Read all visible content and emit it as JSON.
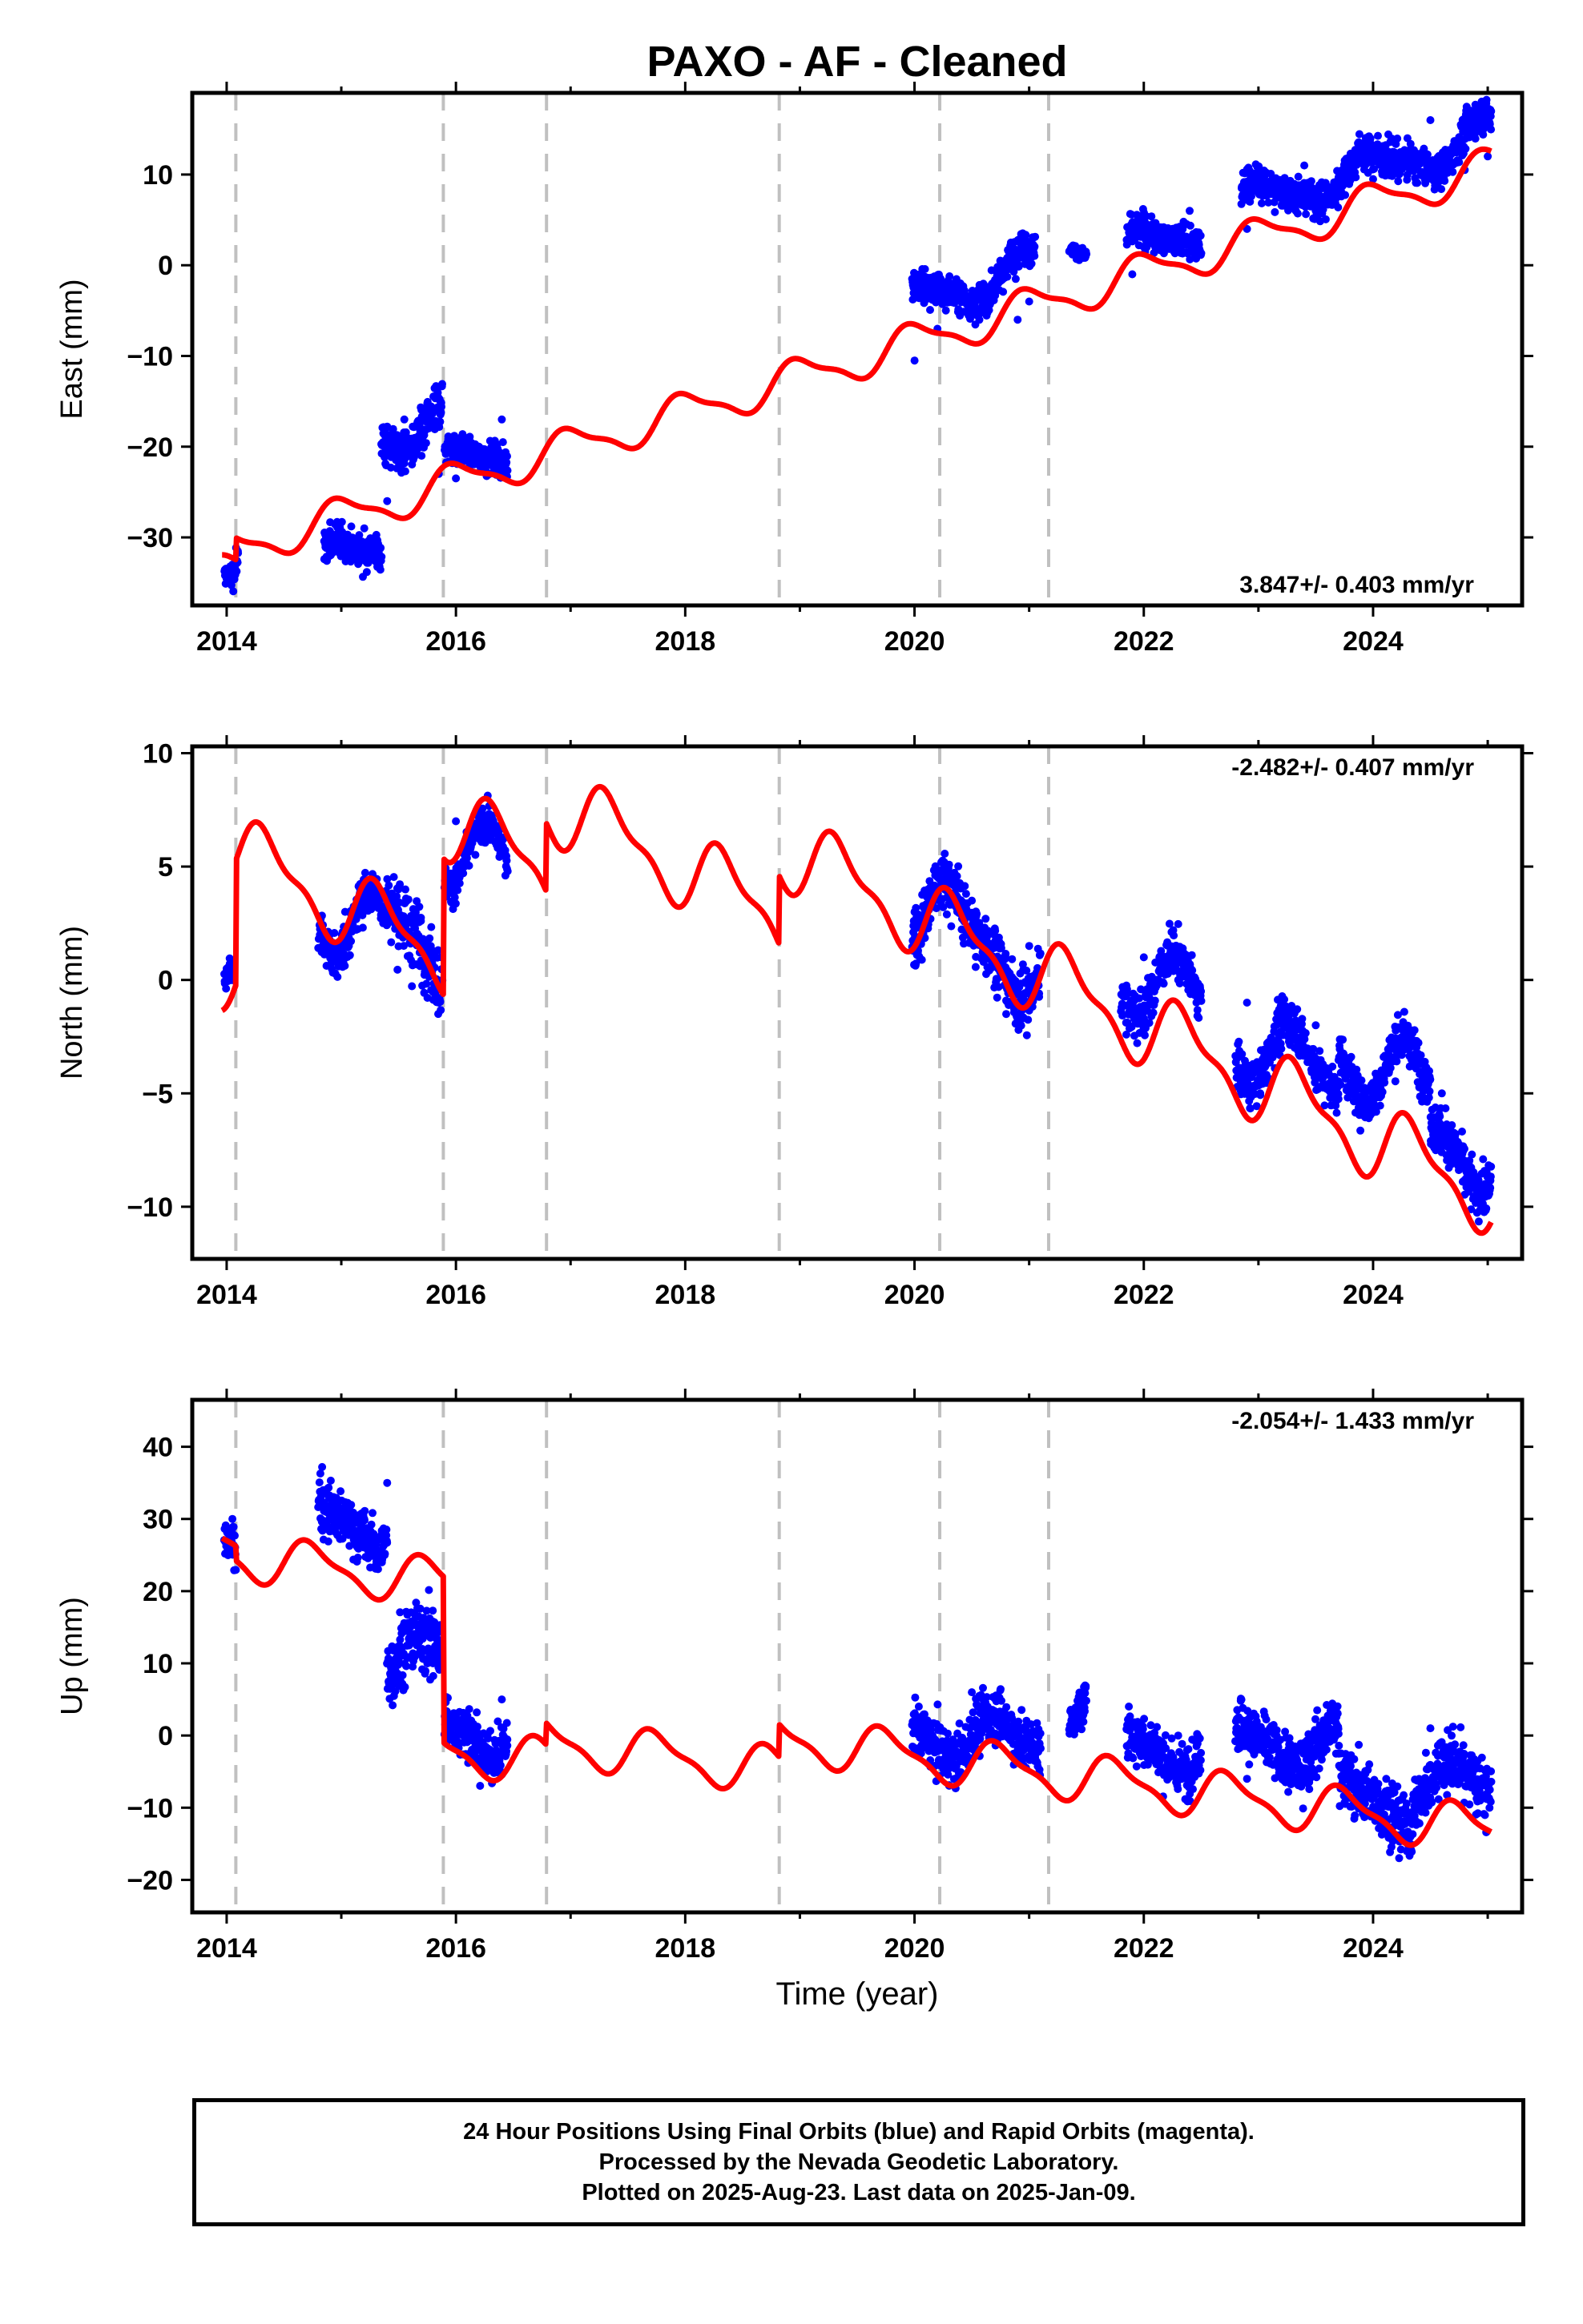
{
  "title": "PAXO  - AF - Cleaned",
  "xlabel": "Time (year)",
  "footer": {
    "line1": "24 Hour Positions Using Final Orbits (blue) and Rapid Orbits (magenta).",
    "line2": "Processed by the Nevada Geodetic Laboratory.",
    "line3": "Plotted on 2025-Aug-23. Last data on 2025-Jan-09."
  },
  "colors": {
    "data": "#0000ff",
    "model": "#ff0000",
    "breaks": "#c0c0c0",
    "axes": "#000000"
  },
  "chart_data": [
    {
      "type": "scatter",
      "ylabel": "East (mm)",
      "rate_label": "3.847+/- 0.403 mm/yr",
      "xlim": [
        2013.7,
        2025.3
      ],
      "ylim": [
        -37.5,
        19
      ],
      "xticks": [
        "2014",
        "2016",
        "2018",
        "2020",
        "2022",
        "2024"
      ],
      "yticks": [
        -30,
        -20,
        -10,
        0,
        10
      ],
      "ytick_labels": [
        "−30",
        "−20",
        "−10",
        "0",
        "10"
      ],
      "breaks": [
        2014.08,
        2015.89,
        2016.79,
        2018.82,
        2020.22,
        2021.17
      ],
      "model": {
        "rate": 3.847,
        "ref_year": 2014.0,
        "ref_value": -34.0,
        "annual_amp": 2.0,
        "semiannual_amp": 0.6,
        "phase": 0.25,
        "offsets": [
          [
            2014.08,
            2.4
          ],
          [
            2015.89,
            0
          ],
          [
            2016.79,
            0
          ],
          [
            2018.82,
            0
          ],
          [
            2020.22,
            0
          ],
          [
            2021.17,
            0
          ]
        ]
      },
      "points": [
        {
          "x": 2014.0,
          "y": -34.5
        },
        {
          "x": 2014.05,
          "y": -33.0
        },
        {
          "x": 2014.9,
          "y": -31.5
        },
        {
          "x": 2015.0,
          "y": -32.0
        },
        {
          "x": 2015.2,
          "y": -29.0
        },
        {
          "x": 2015.4,
          "y": -26.0
        },
        {
          "x": 2015.55,
          "y": -17.0
        },
        {
          "x": 2015.7,
          "y": -21.0
        },
        {
          "x": 2015.85,
          "y": -23.0
        },
        {
          "x": 2016.0,
          "y": -23.5
        },
        {
          "x": 2016.2,
          "y": -20.0
        },
        {
          "x": 2016.4,
          "y": -17.0
        },
        {
          "x": 2020.0,
          "y": -10.5
        },
        {
          "x": 2020.2,
          "y": -7.0
        },
        {
          "x": 2020.4,
          "y": -2.0
        },
        {
          "x": 2020.6,
          "y": -3.0
        },
        {
          "x": 2020.9,
          "y": -6.0
        },
        {
          "x": 2021.0,
          "y": -4.0
        },
        {
          "x": 2021.9,
          "y": -1.0
        },
        {
          "x": 2022.1,
          "y": 2.0
        },
        {
          "x": 2022.4,
          "y": 6.0
        },
        {
          "x": 2022.9,
          "y": 4.0
        },
        {
          "x": 2023.2,
          "y": 8.0
        },
        {
          "x": 2023.4,
          "y": 11.0
        },
        {
          "x": 2023.7,
          "y": 9.0
        },
        {
          "x": 2024.0,
          "y": 9.5
        },
        {
          "x": 2024.3,
          "y": 14.0
        },
        {
          "x": 2024.5,
          "y": 16.0
        },
        {
          "x": 2024.8,
          "y": 10.5
        },
        {
          "x": 2025.0,
          "y": 12.0
        }
      ],
      "segments": [
        [
          2013.98,
          2014.1,
          -34.5,
          2.5
        ],
        [
          2014.85,
          2015.35,
          -31.0,
          3.0
        ],
        [
          2015.35,
          2015.88,
          -20.0,
          4.0
        ],
        [
          2015.9,
          2016.45,
          -21.0,
          2.5
        ],
        [
          2019.98,
          2021.05,
          -4.0,
          3.0
        ],
        [
          2021.35,
          2021.5,
          1.5,
          1.0
        ],
        [
          2021.85,
          2022.5,
          3.0,
          2.8
        ],
        [
          2022.85,
          2023.8,
          8.0,
          3.0
        ],
        [
          2023.8,
          2025.03,
          11.0,
          3.0
        ]
      ]
    },
    {
      "type": "scatter",
      "ylabel": "North (mm)",
      "rate_label": "-2.482+/- 0.407 mm/yr",
      "xlim": [
        2013.7,
        2025.3
      ],
      "ylim": [
        -12.3,
        10.3
      ],
      "xticks": [
        "2014",
        "2016",
        "2018",
        "2020",
        "2022",
        "2024"
      ],
      "yticks": [
        -10,
        -5,
        0,
        5,
        10
      ],
      "ytick_labels": [
        "−10",
        "−5",
        "0",
        "5",
        "10"
      ],
      "breaks": [
        2014.08,
        2015.89,
        2016.79,
        2018.82,
        2020.22,
        2021.17
      ],
      "model": {
        "rate": -2.482,
        "ref_year": 2014.0,
        "ref_value": 0.3,
        "annual_amp": 1.5,
        "semiannual_amp": 0.6,
        "phase": 0.9,
        "offsets": [
          [
            2014.08,
            5.5
          ],
          [
            2015.89,
            6.0
          ],
          [
            2016.79,
            3.0
          ],
          [
            2018.82,
            3.0
          ],
          [
            2020.22,
            0
          ],
          [
            2021.17,
            0
          ]
        ]
      },
      "points": [
        {
          "x": 2014.0,
          "y": 0.5
        },
        {
          "x": 2014.9,
          "y": 2.0
        },
        {
          "x": 2015.1,
          "y": 3.0
        },
        {
          "x": 2015.5,
          "y": 4.0
        },
        {
          "x": 2015.85,
          "y": -1.0
        },
        {
          "x": 2016.0,
          "y": 7.0
        },
        {
          "x": 2016.3,
          "y": 6.5
        },
        {
          "x": 2020.0,
          "y": 3.0
        },
        {
          "x": 2020.5,
          "y": 3.5
        },
        {
          "x": 2020.8,
          "y": -1.5
        },
        {
          "x": 2021.0,
          "y": 1.5
        },
        {
          "x": 2022.0,
          "y": 1.0
        },
        {
          "x": 2022.3,
          "y": 0.0
        },
        {
          "x": 2022.9,
          "y": -1.0
        },
        {
          "x": 2023.2,
          "y": -1.5
        },
        {
          "x": 2023.5,
          "y": -2.0
        },
        {
          "x": 2023.8,
          "y": -5.0
        },
        {
          "x": 2024.2,
          "y": -3.5
        },
        {
          "x": 2024.6,
          "y": -5.0
        },
        {
          "x": 2024.9,
          "y": -9.0
        }
      ],
      "segments": [
        [
          2013.98,
          2014.06,
          0.3,
          1.2
        ],
        [
          2014.8,
          2015.4,
          2.5,
          1.5
        ],
        [
          2015.4,
          2015.88,
          2.0,
          2.5
        ],
        [
          2015.9,
          2016.45,
          6.5,
          1.2
        ],
        [
          2019.98,
          2021.1,
          2.0,
          2.0
        ],
        [
          2021.8,
          2022.5,
          0.5,
          1.6
        ],
        [
          2022.8,
          2023.7,
          -1.8,
          1.5
        ],
        [
          2023.7,
          2024.5,
          -4.0,
          1.6
        ],
        [
          2024.5,
          2025.03,
          -8.0,
          1.6
        ]
      ]
    },
    {
      "type": "scatter",
      "ylabel": "Up (mm)",
      "rate_label": "-2.054+/- 1.433 mm/yr",
      "xlim": [
        2013.7,
        2025.3
      ],
      "ylim": [
        -24.5,
        46.5
      ],
      "xticks": [
        "2014",
        "2016",
        "2018",
        "2020",
        "2022",
        "2024"
      ],
      "yticks": [
        -20,
        -10,
        0,
        10,
        20,
        30,
        40
      ],
      "ytick_labels": [
        "−20",
        "−10",
        "0",
        "10",
        "20",
        "30",
        "40"
      ],
      "breaks": [
        2014.08,
        2015.89,
        2016.79,
        2018.82,
        2020.22,
        2021.17
      ],
      "model": {
        "rate": -2.054,
        "ref_year": 2014.0,
        "ref_value": 27.0,
        "annual_amp": 3.0,
        "semiannual_amp": 1.0,
        "phase": 0.5,
        "offsets": [
          [
            2014.08,
            -2.0
          ],
          [
            2015.89,
            -23.0
          ],
          [
            2016.79,
            3.0
          ],
          [
            2018.82,
            4.5
          ],
          [
            2020.22,
            0
          ],
          [
            2021.17,
            0
          ]
        ]
      },
      "points": [
        {
          "x": 2014.0,
          "y": 27.0
        },
        {
          "x": 2014.05,
          "y": 30.0
        },
        {
          "x": 2014.9,
          "y": 30.0
        },
        {
          "x": 2015.2,
          "y": 30.0
        },
        {
          "x": 2015.4,
          "y": 35.0
        },
        {
          "x": 2015.6,
          "y": 15.0
        },
        {
          "x": 2015.8,
          "y": 10.0
        },
        {
          "x": 2016.0,
          "y": 2.0
        },
        {
          "x": 2016.2,
          "y": -2.0
        },
        {
          "x": 2016.4,
          "y": 5.0
        },
        {
          "x": 2020.0,
          "y": 2.0
        },
        {
          "x": 2020.5,
          "y": 6.0
        },
        {
          "x": 2020.9,
          "y": -2.0
        },
        {
          "x": 2021.9,
          "y": -3.0
        },
        {
          "x": 2022.3,
          "y": 0.0
        },
        {
          "x": 2022.9,
          "y": -6.0
        },
        {
          "x": 2023.4,
          "y": -1.0
        },
        {
          "x": 2023.9,
          "y": -10.0
        },
        {
          "x": 2024.2,
          "y": -12.0
        },
        {
          "x": 2024.5,
          "y": 1.0
        },
        {
          "x": 2024.9,
          "y": -7.0
        }
      ],
      "segments": [
        [
          2013.98,
          2014.08,
          27.0,
          4.5
        ],
        [
          2014.8,
          2015.4,
          29.0,
          6.0
        ],
        [
          2015.4,
          2015.88,
          14.0,
          8.0
        ],
        [
          2015.9,
          2016.45,
          -1.0,
          5.5
        ],
        [
          2019.98,
          2021.1,
          1.0,
          5.5
        ],
        [
          2021.35,
          2021.5,
          3.0,
          4.0
        ],
        [
          2021.85,
          2022.5,
          -3.0,
          5.5
        ],
        [
          2022.8,
          2023.7,
          -4.0,
          6.0
        ],
        [
          2023.7,
          2024.35,
          -9.0,
          6.5
        ],
        [
          2024.35,
          2025.03,
          -3.5,
          6.5
        ]
      ]
    }
  ]
}
